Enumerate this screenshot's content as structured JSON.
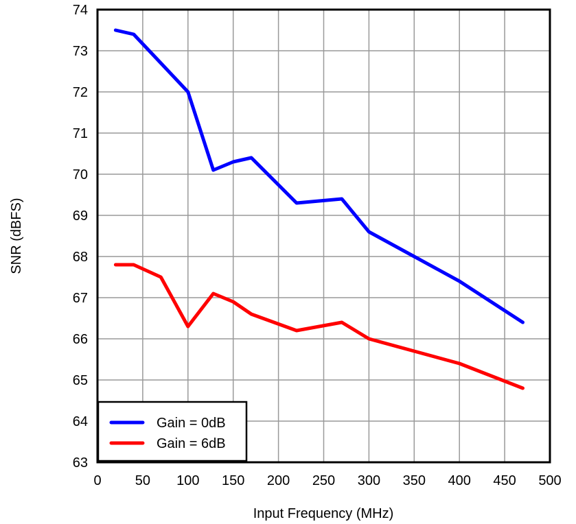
{
  "chart_data": {
    "type": "line",
    "title": "",
    "xlabel": "Input Frequency (MHz)",
    "ylabel": "SNR (dBFS)",
    "xlim": [
      0,
      500
    ],
    "ylim": [
      63,
      74
    ],
    "xticks": [
      0,
      50,
      100,
      150,
      200,
      250,
      300,
      350,
      400,
      450,
      500
    ],
    "yticks": [
      63,
      64,
      65,
      66,
      67,
      68,
      69,
      70,
      71,
      72,
      73,
      74
    ],
    "grid": true,
    "legend_position": "lower left",
    "series": [
      {
        "name": "Gain = 0dB",
        "color": "#0000ff",
        "x": [
          20,
          40,
          70,
          100,
          128,
          150,
          170,
          220,
          270,
          300,
          350,
          400,
          470
        ],
        "y": [
          73.5,
          73.4,
          72.7,
          72.0,
          70.1,
          70.3,
          70.4,
          69.3,
          69.4,
          68.6,
          68.0,
          67.4,
          66.4
        ]
      },
      {
        "name": "Gain = 6dB",
        "color": "#ff0000",
        "x": [
          20,
          40,
          70,
          100,
          128,
          150,
          170,
          220,
          270,
          300,
          350,
          400,
          470
        ],
        "y": [
          67.8,
          67.8,
          67.5,
          66.3,
          67.1,
          66.9,
          66.6,
          66.2,
          66.4,
          66.0,
          65.7,
          65.4,
          64.8
        ]
      }
    ]
  }
}
